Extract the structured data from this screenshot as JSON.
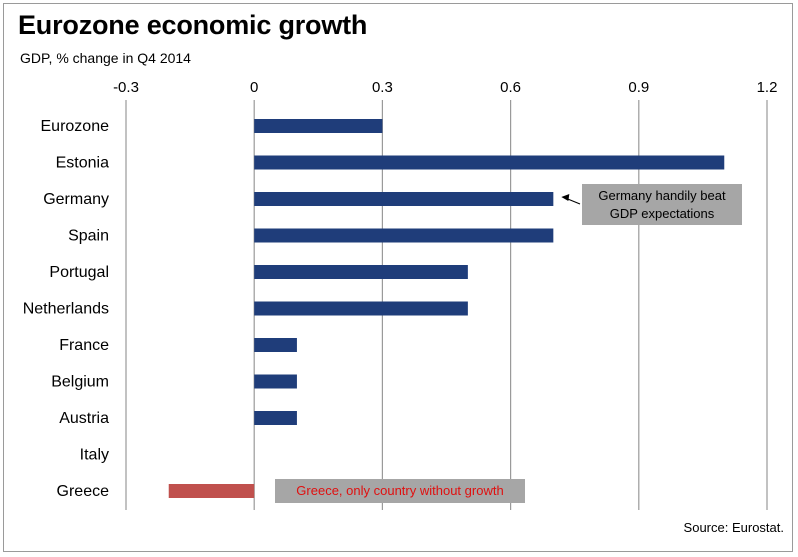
{
  "chart_data": {
    "type": "bar",
    "orientation": "horizontal",
    "title": "Eurozone economic growth",
    "subtitle": "GDP, % change in Q4 2014",
    "source": "Source: Eurostat.",
    "categories": [
      "Eurozone",
      "Estonia",
      "Germany",
      "Spain",
      "Portugal",
      "Netherlands",
      "France",
      "Belgium",
      "Austria",
      "Italy",
      "Greece"
    ],
    "values": [
      0.3,
      1.1,
      0.7,
      0.7,
      0.5,
      0.5,
      0.1,
      0.1,
      0.1,
      0.0,
      -0.2
    ],
    "xlim": [
      -0.3,
      1.2
    ],
    "xticks": [
      "-0.3",
      "0",
      "0.3",
      "0.6",
      "0.9",
      "1.2"
    ],
    "xtick_values": [
      -0.3,
      0,
      0.3,
      0.6,
      0.9,
      1.2
    ],
    "grid": "vertical",
    "axis_position": "top",
    "colors": {
      "positive": "#1f3d7a",
      "negative": "#c0504d",
      "grid": "#9a9a9a",
      "callout_bg": "#a6a6a6"
    },
    "annotations": [
      {
        "category": "Germany",
        "text_lines": [
          "Germany handily beat",
          "GDP expectations"
        ],
        "color": "#000000"
      },
      {
        "category": "Greece",
        "text_lines": [
          "Greece, only country without growth"
        ],
        "color": "#e01010"
      }
    ]
  }
}
